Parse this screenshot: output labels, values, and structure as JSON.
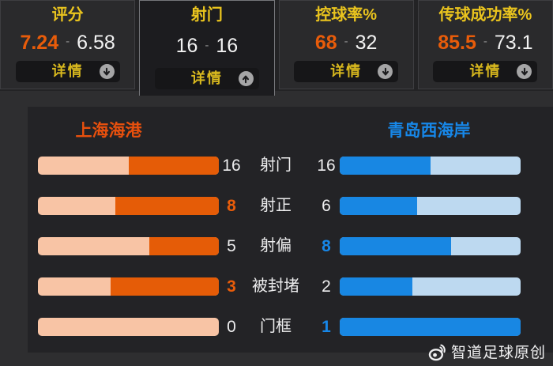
{
  "topbar": {
    "cards": [
      {
        "title": "评分",
        "home_value": "7.24",
        "separator": "-",
        "away_value": "6.58",
        "home_highlight": true,
        "button_label": "详情",
        "arrow": "down",
        "selected": false
      },
      {
        "title": "射门",
        "home_value": "16",
        "separator": "-",
        "away_value": "16",
        "home_highlight": false,
        "button_label": "详情",
        "arrow": "up",
        "selected": true
      },
      {
        "title": "控球率%",
        "home_value": "68",
        "separator": "-",
        "away_value": "32",
        "home_highlight": true,
        "button_label": "详情",
        "arrow": "down",
        "selected": false
      },
      {
        "title": "传球成功率%",
        "home_value": "85.5",
        "separator": "-",
        "away_value": "73.1",
        "home_highlight": true,
        "button_label": "详情",
        "arrow": "down",
        "selected": false
      }
    ]
  },
  "panel": {
    "home_team": "上海海港",
    "away_team": "青岛西海岸",
    "rows": [
      {
        "label": "射门",
        "home": 16,
        "away": 16,
        "highlight": "none"
      },
      {
        "label": "射正",
        "home": 8,
        "away": 6,
        "highlight": "home"
      },
      {
        "label": "射偏",
        "home": 5,
        "away": 8,
        "highlight": "away"
      },
      {
        "label": "被封堵",
        "home": 3,
        "away": 2,
        "highlight": "home"
      },
      {
        "label": "门框",
        "home": 0,
        "away": 1,
        "highlight": "away"
      }
    ]
  },
  "watermark": {
    "text": "智道足球原创",
    "icon": "weibo-icon"
  },
  "colors": {
    "home_accent": "#e85c0a",
    "away_accent": "#1787e8",
    "home_bar_track": "#f8c4a5",
    "home_bar_fill": "#e55c07",
    "away_bar_track": "#bdd9f0",
    "away_bar_fill": "#1887e3",
    "title_gold": "#eac41e",
    "button_text": "#d8b81e"
  }
}
